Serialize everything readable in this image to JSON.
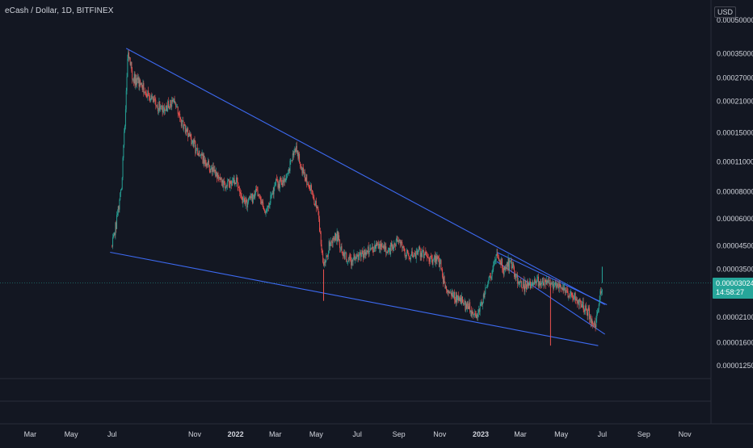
{
  "header": {
    "title": "eCash / Dollar, 1D, BITFINEX",
    "currency": "USD"
  },
  "price_badge": {
    "price": "0.00003024",
    "countdown": "14:58:27",
    "color": "#26a69a"
  },
  "colors": {
    "background": "#131722",
    "up": "#26a69a",
    "down": "#ef5350",
    "trendline": "#3d6af2",
    "axis_text": "#d1d4dc"
  },
  "chart_data": {
    "type": "candlestick",
    "title": "eCash / Dollar, 1D, BITFINEX",
    "scale": "log",
    "y_ticks": [
      0.0005,
      0.00035,
      0.00027,
      0.00021,
      0.00015,
      0.00011,
      8e-05,
      6e-05,
      4.5e-05,
      3.5e-05,
      2.1e-05,
      1.6e-05,
      1.25e-05
    ],
    "y_tick_labels": [
      "0.00050000",
      "0.00035000",
      "0.00027000",
      "0.00021000",
      "0.00015000",
      "0.00011000",
      "0.00008000",
      "0.00006000",
      "0.00004500",
      "0.00003500",
      "0.00002100",
      "0.00001600",
      "0.00001250"
    ],
    "x_tick_labels": [
      "Mar",
      "May",
      "Jul",
      "Nov",
      "2022",
      "Mar",
      "May",
      "Jul",
      "Sep",
      "Nov",
      "2023",
      "Mar",
      "May",
      "Jul",
      "Sep",
      "Nov"
    ],
    "x_tick_dates": [
      "2021-03-01",
      "2021-05-01",
      "2021-07-01",
      "2021-11-01",
      "2022-01-01",
      "2022-03-01",
      "2022-05-01",
      "2022-07-01",
      "2022-09-01",
      "2022-11-01",
      "2023-01-01",
      "2023-03-01",
      "2023-05-01",
      "2023-07-01",
      "2023-09-01",
      "2023-11-01"
    ],
    "x_range": [
      "2021-01-15",
      "2023-12-10"
    ],
    "y_range": [
      1.1e-05,
      0.00062
    ],
    "last_price": 3.024e-05,
    "price_path": [
      [
        "2021-07-01",
        4.5e-05
      ],
      [
        "2021-07-08",
        6e-05
      ],
      [
        "2021-07-15",
        8.5e-05
      ],
      [
        "2021-07-20",
        0.00017
      ],
      [
        "2021-07-25",
        0.00036
      ],
      [
        "2021-08-01",
        0.00027
      ],
      [
        "2021-08-15",
        0.00025
      ],
      [
        "2021-09-01",
        0.00021
      ],
      [
        "2021-09-15",
        0.00019
      ],
      [
        "2021-10-01",
        0.00021
      ],
      [
        "2021-10-15",
        0.00016
      ],
      [
        "2021-11-01",
        0.00013
      ],
      [
        "2021-11-15",
        0.00011
      ],
      [
        "2021-12-01",
        0.0001
      ],
      [
        "2021-12-15",
        8.5e-05
      ],
      [
        "2022-01-01",
        9e-05
      ],
      [
        "2022-01-15",
        7e-05
      ],
      [
        "2022-02-01",
        8e-05
      ],
      [
        "2022-02-15",
        6.5e-05
      ],
      [
        "2022-03-01",
        8.5e-05
      ],
      [
        "2022-03-15",
        9e-05
      ],
      [
        "2022-04-01",
        0.00013
      ],
      [
        "2022-04-10",
        0.0001
      ],
      [
        "2022-04-25",
        8e-05
      ],
      [
        "2022-05-05",
        6e-05
      ],
      [
        "2022-05-12",
        3.5e-05
      ],
      [
        "2022-05-20",
        4.5e-05
      ],
      [
        "2022-06-01",
        5e-05
      ],
      [
        "2022-06-15",
        3.8e-05
      ],
      [
        "2022-07-01",
        4e-05
      ],
      [
        "2022-07-15",
        4.2e-05
      ],
      [
        "2022-08-01",
        4.5e-05
      ],
      [
        "2022-08-15",
        4.2e-05
      ],
      [
        "2022-09-01",
        4.8e-05
      ],
      [
        "2022-09-15",
        4e-05
      ],
      [
        "2022-10-01",
        4.2e-05
      ],
      [
        "2022-10-15",
        4e-05
      ],
      [
        "2022-11-01",
        3.8e-05
      ],
      [
        "2022-11-10",
        2.8e-05
      ],
      [
        "2022-11-25",
        2.6e-05
      ],
      [
        "2022-12-10",
        2.4e-05
      ],
      [
        "2022-12-25",
        2.1e-05
      ],
      [
        "2023-01-05",
        2.6e-05
      ],
      [
        "2023-01-15",
        3.2e-05
      ],
      [
        "2023-01-25",
        4e-05
      ],
      [
        "2023-02-05",
        3.5e-05
      ],
      [
        "2023-02-15",
        3.8e-05
      ],
      [
        "2023-02-25",
        3e-05
      ],
      [
        "2023-03-10",
        2.9e-05
      ],
      [
        "2023-03-25",
        3.1e-05
      ],
      [
        "2023-04-10",
        3e-05
      ],
      [
        "2023-04-25",
        2.9e-05
      ],
      [
        "2023-05-10",
        2.7e-05
      ],
      [
        "2023-05-25",
        2.5e-05
      ],
      [
        "2023-06-10",
        2.2e-05
      ],
      [
        "2023-06-20",
        1.9e-05
      ],
      [
        "2023-06-28",
        2.6e-05
      ],
      [
        "2023-07-02",
        3.024e-05
      ]
    ],
    "wicks": [
      [
        "2022-05-12",
        2.5e-05
      ],
      [
        "2023-04-15",
        1.55e-05
      ],
      [
        "2023-07-01",
        3.6e-05
      ]
    ],
    "trendlines": [
      {
        "from": [
          "2021-07-22",
          0.00037
        ],
        "to": [
          "2023-07-05",
          2.4e-05
        ]
      },
      {
        "from": [
          "2021-06-28",
          4.2e-05
        ],
        "to": [
          "2023-06-25",
          1.55e-05
        ]
      },
      {
        "from": [
          "2023-01-25",
          4.2e-05
        ],
        "to": [
          "2023-07-08",
          2.4e-05
        ]
      },
      {
        "from": [
          "2023-01-25",
          3.8e-05
        ],
        "to": [
          "2023-07-05",
          1.75e-05
        ]
      }
    ]
  }
}
